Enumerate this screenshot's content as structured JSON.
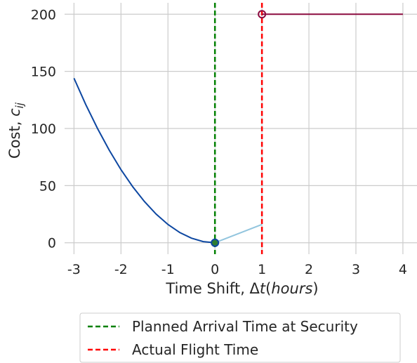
{
  "chart_data": {
    "type": "line",
    "xlabel": "Time Shift, Δt(hours)",
    "xlabel_parts": {
      "text": "Time Shift, Δ",
      "t": "t",
      "open": "(",
      "hours": "hours",
      "close": ")"
    },
    "ylabel": "Cost, c_ij",
    "ylabel_parts": {
      "text": "Cost, ",
      "c": "c",
      "sub": "ij"
    },
    "xlim": [
      -3.2,
      4.3
    ],
    "ylim": [
      -10,
      210
    ],
    "x_ticks": [
      -3,
      -2,
      -1,
      0,
      1,
      2,
      3,
      4
    ],
    "x_tick_labels": [
      "-3",
      "-2",
      "-1",
      "0",
      "1",
      "2",
      "3",
      "4"
    ],
    "y_ticks": [
      0,
      50,
      100,
      150,
      200
    ],
    "y_tick_labels": [
      "0",
      "50",
      "100",
      "150",
      "200"
    ],
    "grid": true,
    "legend_position": "bottom, below plot",
    "series": [
      {
        "color": "#0d47a1",
        "style": "solid",
        "x": [
          -3,
          -2.75,
          -2.5,
          -2.25,
          -2,
          -1.75,
          -1.5,
          -1.25,
          -1,
          -0.75,
          -0.5,
          -0.25,
          0
        ],
        "y": [
          144,
          121,
          100,
          81,
          64,
          49,
          36,
          25,
          16,
          9,
          4,
          1,
          0
        ]
      },
      {
        "color": "#92c5de",
        "style": "solid",
        "x": [
          0,
          1
        ],
        "y": [
          0,
          16
        ]
      },
      {
        "color": "#8b0a3f",
        "style": "solid",
        "x": [
          1,
          4
        ],
        "y": [
          200,
          200
        ]
      }
    ],
    "markers": [
      {
        "x": 0,
        "y": 0,
        "color": "#0d47a1",
        "fill": "#2e7d32"
      },
      {
        "x": 1,
        "y": 200,
        "color": "#8b0a3f",
        "fill": "none"
      }
    ],
    "vlines": [
      {
        "x": 0,
        "color": "#008000",
        "style": "dashed",
        "label": "Planned Arrival Time at Security"
      },
      {
        "x": 1,
        "color": "#ff0000",
        "style": "dashed",
        "label": "Actual Flight Time"
      }
    ]
  }
}
